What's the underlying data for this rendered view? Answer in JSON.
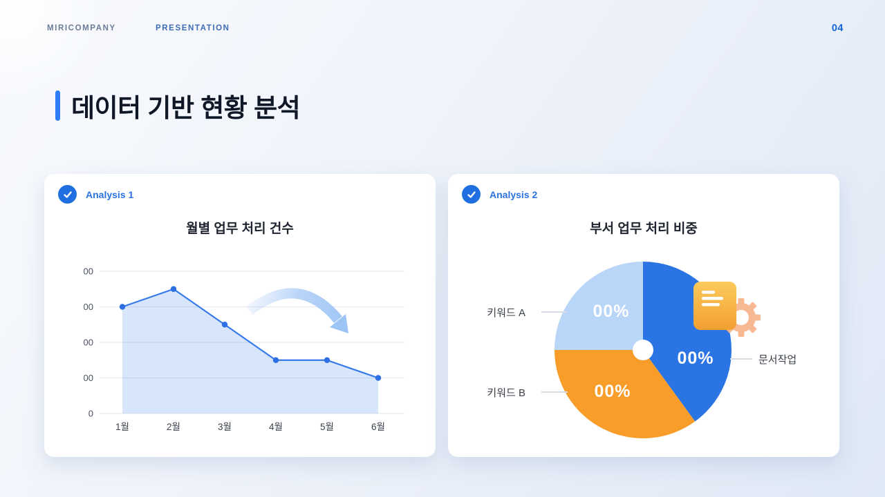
{
  "header": {
    "brand": "MIRICOMPANY",
    "doc_type": "PRESENTATION",
    "page_number": "04"
  },
  "title": {
    "text": "데이터 기반 현황 분석"
  },
  "cards": {
    "left": {
      "badge_label": "Analysis 1"
    },
    "right": {
      "badge_label": "Analysis 2"
    }
  },
  "chart_data": [
    {
      "type": "area",
      "title": "월별 업무 처리 건수",
      "categories": [
        "1월",
        "2월",
        "3월",
        "4월",
        "5월",
        "6월"
      ],
      "values": [
        300,
        350,
        250,
        150,
        150,
        100
      ],
      "ylim": [
        0,
        400
      ],
      "yticks": [
        {
          "value": 0,
          "label": "0"
        },
        {
          "value": 100,
          "label": "00"
        },
        {
          "value": 200,
          "label": "00"
        },
        {
          "value": 300,
          "label": "00"
        },
        {
          "value": 400,
          "label": "00"
        }
      ],
      "grid": true,
      "legend": "none",
      "line_color": "#3579ea",
      "point_color": "#2e6fe4",
      "fill_color": "rgba(77,139,240,0.22)",
      "annotation": "downward-trend-arrow"
    },
    {
      "type": "pie",
      "title": "부서 업무 처리 비중",
      "start_angle_deg": 0,
      "donut_hole": true,
      "overlay_icon": "document-gear-icon",
      "slices": [
        {
          "label": "문서작업",
          "value_label": "00%",
          "fraction": 0.4,
          "color": "#2b74e4",
          "label_side": "right"
        },
        {
          "label": "키워드 B",
          "value_label": "00%",
          "fraction": 0.35,
          "color": "#f89c2a",
          "label_side": "left"
        },
        {
          "label": "키워드 A",
          "value_label": "00%",
          "fraction": 0.25,
          "color": "#b9d5f8",
          "label_side": "left"
        }
      ]
    }
  ]
}
